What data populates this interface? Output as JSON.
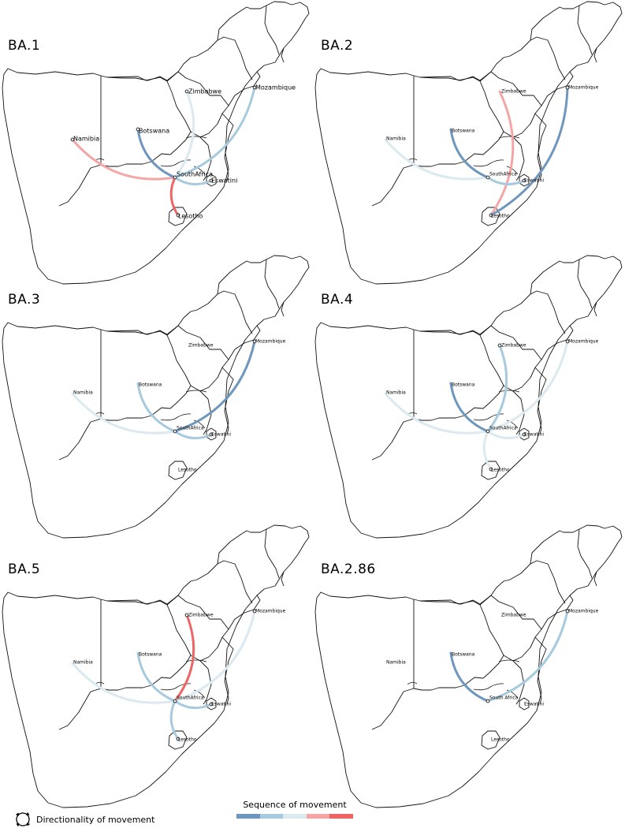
{
  "panels": [
    {
      "title": "BA.1",
      "label_size": 8,
      "labels": {
        "Namibia": "Namibia",
        "Botswana": "Botswana",
        "Zimbabwe": "Zimbabwe",
        "Mozambique": "Mozambique",
        "SouthAfrica": "SouthAfrica",
        "Eswatini": "Eswatini",
        "Lesotho": "Lesotho"
      },
      "dots": [
        "Namibia",
        "Botswana",
        "Zimbabwe",
        "Mozambique",
        "SouthAfrica",
        "Eswatini",
        "Lesotho"
      ],
      "movements": [
        {
          "from": "SouthAfrica",
          "to": "Botswana",
          "order": 1
        },
        {
          "from": "SouthAfrica",
          "to": "Mozambique",
          "order": 2
        },
        {
          "from": "SouthAfrica",
          "to": "Eswatini",
          "order": 2
        },
        {
          "from": "SouthAfrica",
          "to": "Zimbabwe",
          "order": 3
        },
        {
          "from": "SouthAfrica",
          "to": "Namibia",
          "order": 4
        },
        {
          "from": "SouthAfrica",
          "to": "Lesotho",
          "order": 5
        }
      ]
    },
    {
      "title": "BA.2",
      "label_size": 6,
      "labels": {
        "Namibia": "Namibia",
        "Botswana": "Botswana",
        "Zimbabwe": "Zimbabwe",
        "Mozambique": "Mozambique",
        "SouthAfrica": "SouthAfrica",
        "Eswatini": "Eswatini",
        "Lesotho": "Lesotho"
      },
      "dots": [
        "Mozambique",
        "SouthAfrica",
        "Eswatini",
        "Lesotho"
      ],
      "movements": [
        {
          "from": "SouthAfrica",
          "to": "Botswana",
          "order": 1
        },
        {
          "from": "Lesotho",
          "to": "Mozambique",
          "order": 1
        },
        {
          "from": "SouthAfrica",
          "to": "Eswatini",
          "order": 2
        },
        {
          "from": "SouthAfrica",
          "to": "Namibia",
          "order": 3
        },
        {
          "from": "Lesotho",
          "to": "Zimbabwe",
          "order": 4
        }
      ]
    },
    {
      "title": "BA.3",
      "label_size": 6,
      "labels": {
        "Namibia": "Namibia",
        "Botswana": "Botswana",
        "Zimbabwe": "Zimbabwe",
        "Mozambique": "Mozambique",
        "SouthAfrica": "SouthAfrica",
        "Eswatini": "Eswatini",
        "Lesotho": "Lesotho"
      },
      "dots": [
        "Mozambique",
        "SouthAfrica",
        "Eswatini"
      ],
      "movements": [
        {
          "from": "SouthAfrica",
          "to": "Mozambique",
          "order": 1
        },
        {
          "from": "SouthAfrica",
          "to": "Botswana",
          "order": 2
        },
        {
          "from": "SouthAfrica",
          "to": "Eswatini",
          "order": 2
        },
        {
          "from": "SouthAfrica",
          "to": "Namibia",
          "order": 3
        }
      ]
    },
    {
      "title": "BA.4",
      "label_size": 6,
      "labels": {
        "Namibia": "Namibia",
        "Botswana": "Botswana",
        "Zimbabwe": "Zimbabwe",
        "Mozambique": "Mozambique",
        "SouthAfrica": "SouthAfrica",
        "Eswatini": "Eswatini",
        "Lesotho": "Lesotho"
      },
      "dots": [
        "Zimbabwe",
        "Mozambique",
        "SouthAfrica",
        "Eswatini",
        "Lesotho"
      ],
      "movements": [
        {
          "from": "SouthAfrica",
          "to": "Botswana",
          "order": 1
        },
        {
          "from": "SouthAfrica",
          "to": "Zimbabwe",
          "order": 2
        },
        {
          "from": "SouthAfrica",
          "to": "Namibia",
          "order": 3
        },
        {
          "from": "SouthAfrica",
          "to": "Mozambique",
          "order": 3
        },
        {
          "from": "SouthAfrica",
          "to": "Eswatini",
          "order": 3
        },
        {
          "from": "SouthAfrica",
          "to": "Lesotho",
          "order": 3
        }
      ]
    },
    {
      "title": "BA.5",
      "label_size": 6,
      "labels": {
        "Namibia": "Namibia",
        "Botswana": "Botswana",
        "Zimbabwe": "Zimbabwe",
        "Mozambique": "Mozambique",
        "SouthAfrica": "SouthAfrica",
        "Eswatini": "Eswatini",
        "Lesotho": "Lesotho"
      },
      "dots": [
        "Zimbabwe",
        "Mozambique",
        "SouthAfrica",
        "Eswatini",
        "Lesotho"
      ],
      "movements": [
        {
          "from": "SouthAfrica",
          "to": "Botswana",
          "order": 2
        },
        {
          "from": "SouthAfrica",
          "to": "Eswatini",
          "order": 2
        },
        {
          "from": "SouthAfrica",
          "to": "Lesotho",
          "order": 2
        },
        {
          "from": "SouthAfrica",
          "to": "Namibia",
          "order": 3
        },
        {
          "from": "SouthAfrica",
          "to": "Mozambique",
          "order": 3
        },
        {
          "from": "SouthAfrica",
          "to": "Zimbabwe",
          "order": 5
        }
      ]
    },
    {
      "title": "BA.2.86",
      "label_size": 6,
      "labels": {
        "Namibia": "Namibia",
        "Botswana": "Botswana",
        "Zimbabwe": "Zimbabwe",
        "Mozambique": "Mozambique",
        "SouthAfrica": "South Africa",
        "Eswatini": "Eswatini",
        "Lesotho": "Lesotho"
      },
      "dots": [
        "Mozambique",
        "SouthAfrica"
      ],
      "movements": [
        {
          "from": "SouthAfrica",
          "to": "Botswana",
          "order": 1
        },
        {
          "from": "SouthAfrica",
          "to": "Mozambique",
          "order": 2
        }
      ]
    }
  ],
  "legend": {
    "directionality_label": "Directionality of movement",
    "directionality_icon": "circular-arrows-icon",
    "sequence_title": "Sequence of movement",
    "sequence_colors": [
      "#6f97bd",
      "#a7cade",
      "#dbe9f1",
      "#f4a6a6",
      "#ee6565"
    ]
  }
}
